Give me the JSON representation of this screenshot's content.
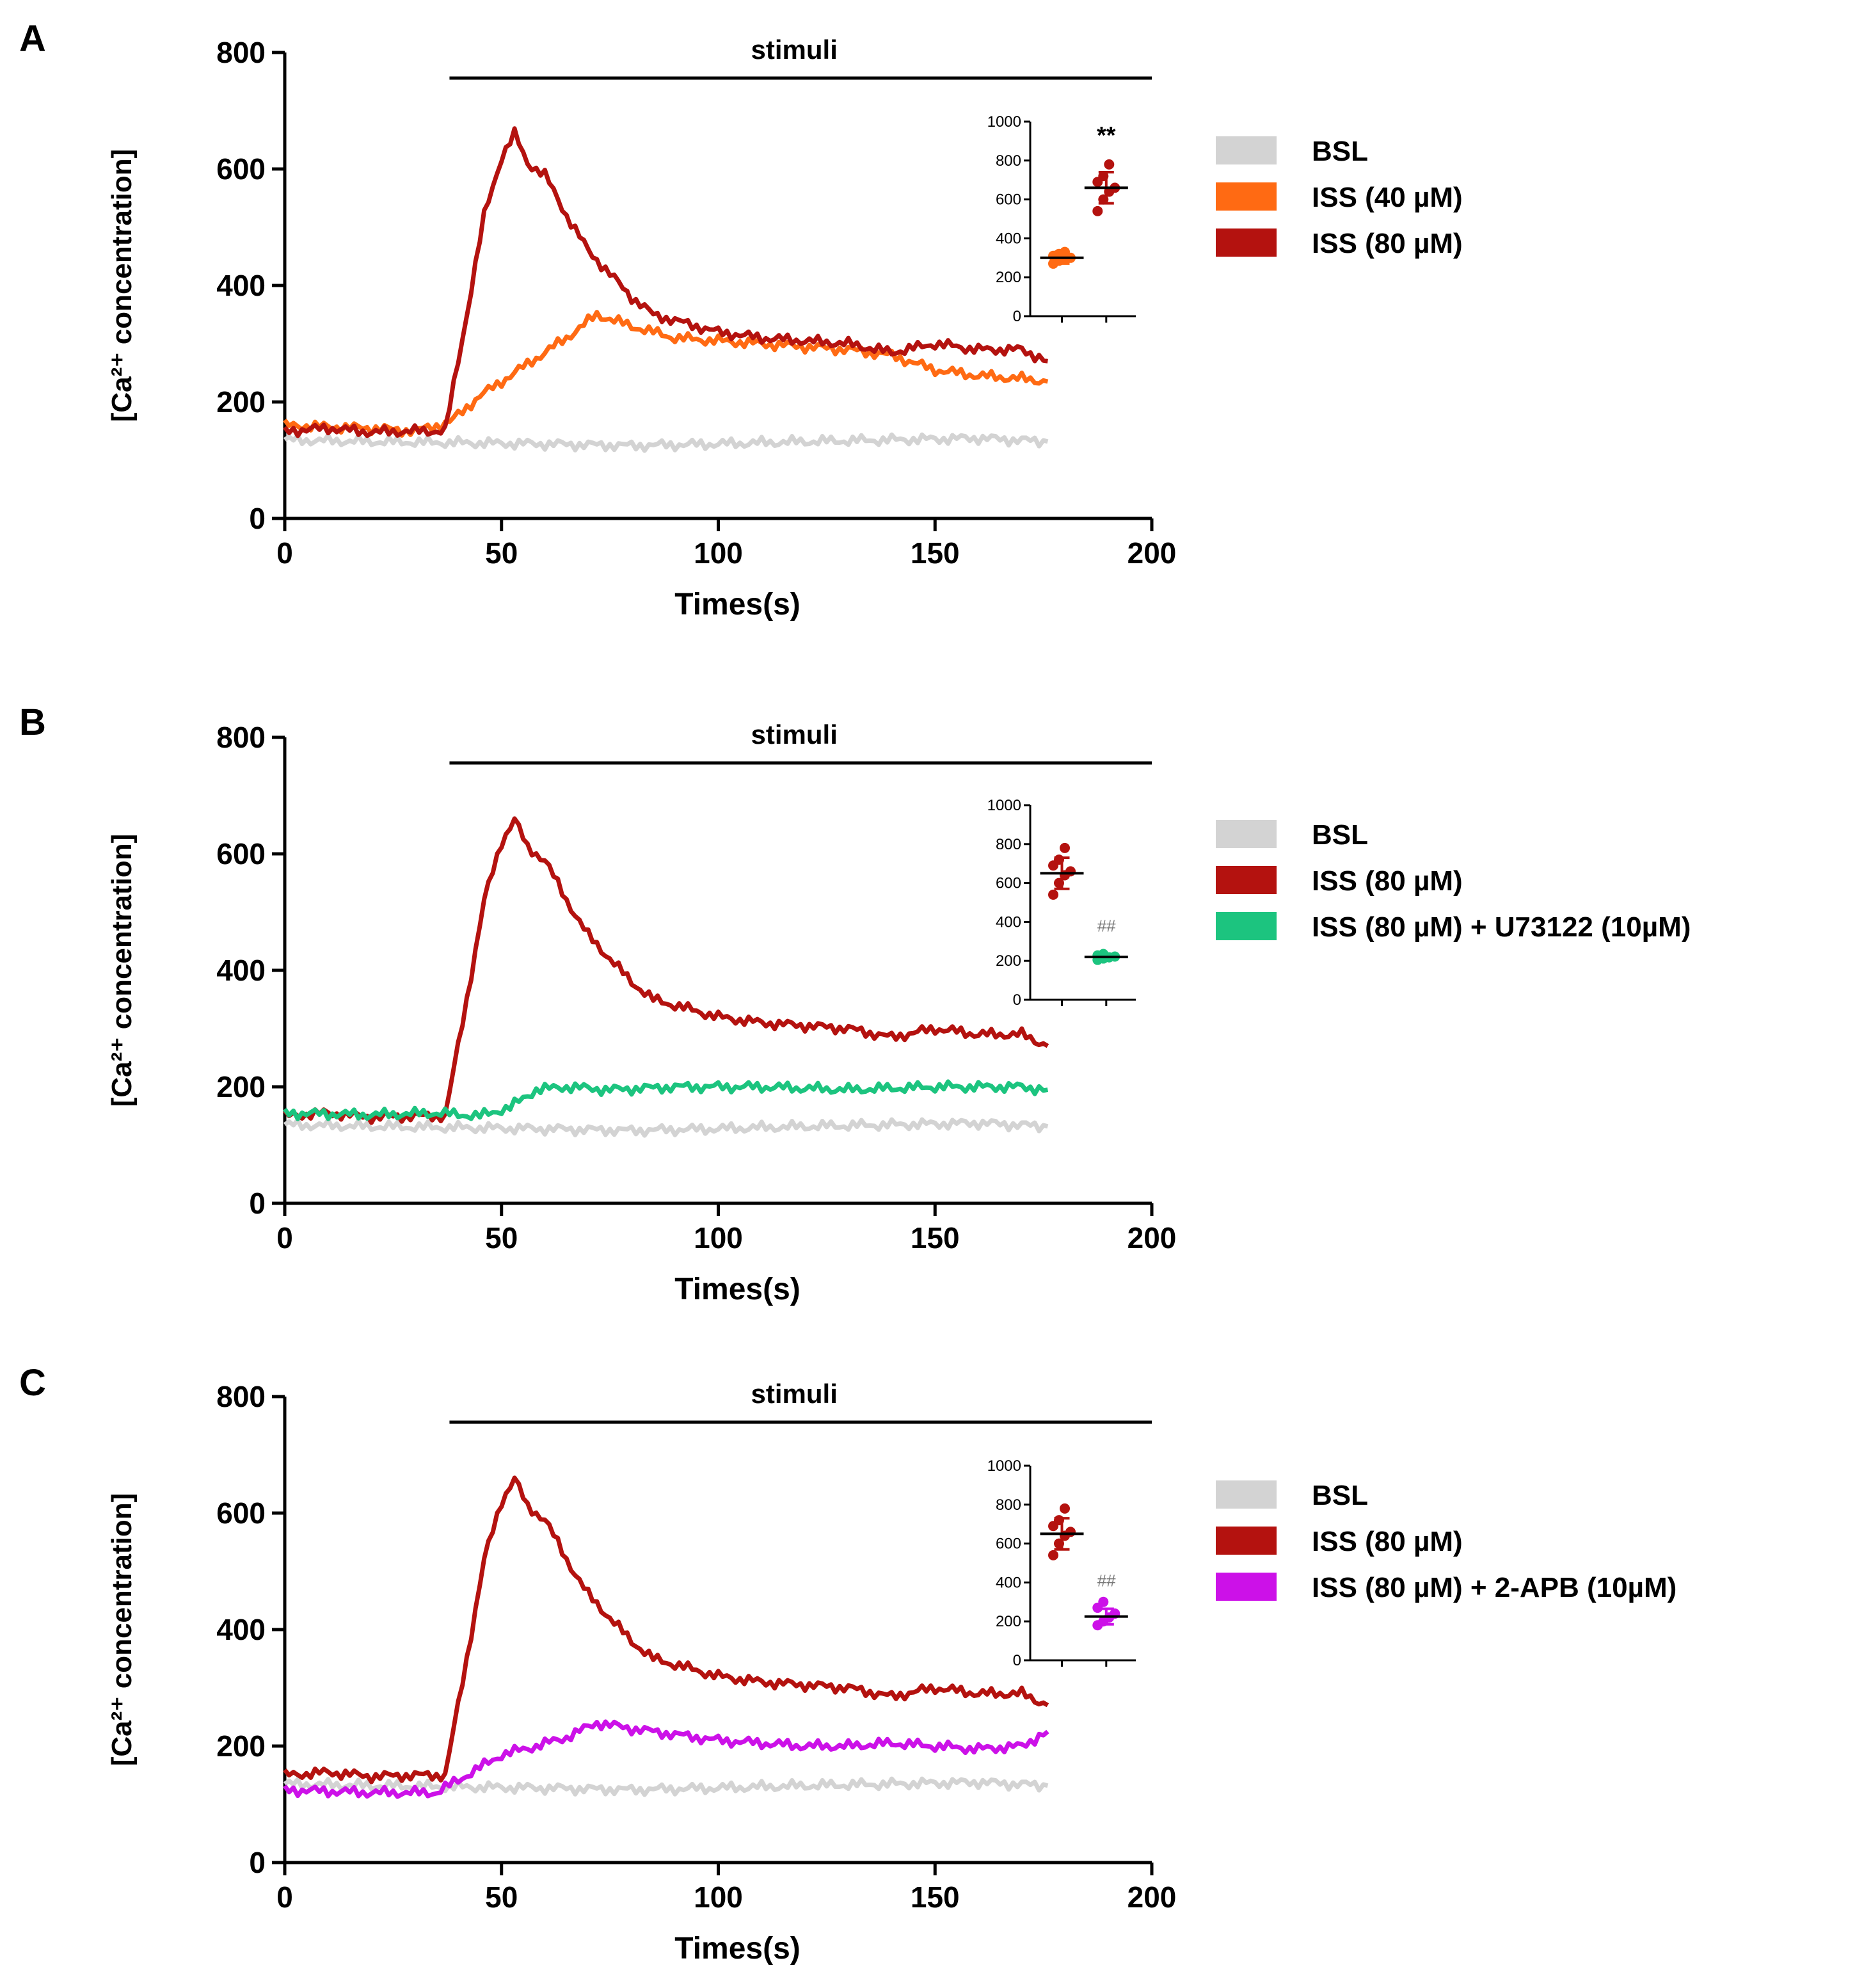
{
  "chart_data": [
    {
      "panel": "A",
      "type": "line",
      "title": "",
      "stimulus_label": "stimuli",
      "stimulus_range": [
        38,
        200
      ],
      "xlabel": "Times(s)",
      "ylabel": "[Ca²⁺ concentration]",
      "xlim": [
        0,
        200
      ],
      "ylim": [
        0,
        800
      ],
      "xticks": [
        "0",
        "50",
        "100",
        "150",
        "200"
      ],
      "yticks": [
        "0",
        "200",
        "400",
        "600",
        "800"
      ],
      "series": [
        {
          "name": "BSL",
          "color": "#d3d3d3",
          "x": [
            0,
            20,
            40,
            60,
            80,
            100,
            120,
            140,
            160,
            176
          ],
          "y": [
            135,
            132,
            130,
            128,
            125,
            128,
            132,
            135,
            138,
            132
          ]
        },
        {
          "name": "ISS (40 µM)",
          "color": "#ff6a13",
          "x": [
            0,
            20,
            30,
            38,
            45,
            55,
            65,
            72,
            80,
            90,
            100,
            110,
            120,
            130,
            140,
            150,
            160,
            170,
            176
          ],
          "y": [
            160,
            155,
            150,
            165,
            210,
            260,
            310,
            350,
            330,
            310,
            305,
            300,
            295,
            290,
            280,
            255,
            245,
            240,
            235
          ]
        },
        {
          "name": "ISS (80 µM)",
          "color": "#b4120f",
          "x": [
            0,
            10,
            20,
            30,
            37,
            42,
            46,
            50,
            53,
            56,
            60,
            65,
            70,
            75,
            80,
            85,
            90,
            100,
            110,
            120,
            130,
            140,
            150,
            160,
            170,
            176
          ],
          "y": [
            150,
            155,
            148,
            150,
            150,
            350,
            520,
            620,
            660,
            610,
            590,
            520,
            460,
            420,
            380,
            350,
            340,
            320,
            310,
            305,
            300,
            285,
            300,
            290,
            290,
            270
          ]
        }
      ],
      "inset": {
        "ylim": [
          0,
          1000
        ],
        "yticks": [
          "0",
          "200",
          "400",
          "600",
          "800",
          "1000"
        ],
        "annotation": "**",
        "groups": [
          {
            "name": "ISS (40 µM)",
            "color": "#ff6a13",
            "mean": 300,
            "sd": 30,
            "points": [
              270,
              285,
              295,
              300,
              310,
              320,
              330
            ]
          },
          {
            "name": "ISS (80 µM)",
            "color": "#b4120f",
            "mean": 660,
            "sd": 80,
            "points": [
              540,
              600,
              640,
              660,
              690,
              720,
              780
            ]
          }
        ]
      }
    },
    {
      "panel": "B",
      "type": "line",
      "title": "",
      "stimulus_label": "stimuli",
      "stimulus_range": [
        38,
        200
      ],
      "xlabel": "Times(s)",
      "ylabel": "[Ca²⁺ concentration]",
      "xlim": [
        0,
        200
      ],
      "ylim": [
        0,
        800
      ],
      "xticks": [
        "0",
        "50",
        "100",
        "150",
        "200"
      ],
      "yticks": [
        "0",
        "200",
        "400",
        "600",
        "800"
      ],
      "series": [
        {
          "name": "BSL",
          "color": "#d3d3d3",
          "x": [
            0,
            20,
            40,
            60,
            80,
            100,
            120,
            140,
            160,
            176
          ],
          "y": [
            135,
            132,
            130,
            128,
            125,
            128,
            132,
            135,
            138,
            132
          ]
        },
        {
          "name": "ISS (80 µM)",
          "color": "#b4120f",
          "x": [
            0,
            10,
            20,
            30,
            37,
            42,
            46,
            50,
            53,
            56,
            60,
            65,
            70,
            75,
            80,
            85,
            90,
            100,
            110,
            120,
            130,
            140,
            150,
            160,
            170,
            176
          ],
          "y": [
            150,
            155,
            148,
            150,
            150,
            350,
            520,
            620,
            660,
            610,
            590,
            520,
            460,
            420,
            380,
            350,
            340,
            320,
            310,
            305,
            300,
            285,
            300,
            290,
            290,
            270
          ]
        },
        {
          "name": "ISS (80 µM) + U73122 (10µM)",
          "color": "#1cc47f",
          "x": [
            0,
            20,
            35,
            45,
            52,
            58,
            65,
            75,
            90,
            110,
            130,
            150,
            170,
            176
          ],
          "y": [
            155,
            152,
            155,
            150,
            165,
            195,
            200,
            195,
            200,
            200,
            195,
            200,
            200,
            195
          ]
        }
      ],
      "inset": {
        "ylim": [
          0,
          1000
        ],
        "yticks": [
          "0",
          "200",
          "400",
          "600",
          "800",
          "1000"
        ],
        "annotation": "##",
        "groups": [
          {
            "name": "ISS (80 µM)",
            "color": "#b4120f",
            "mean": 650,
            "sd": 80,
            "points": [
              540,
              600,
              640,
              660,
              690,
              720,
              780
            ]
          },
          {
            "name": "ISS (80 µM) + U73122 (10µM)",
            "color": "#1cc47f",
            "mean": 220,
            "sd": 15,
            "points": [
              205,
              212,
              218,
              222,
              228,
              235
            ]
          }
        ]
      }
    },
    {
      "panel": "C",
      "type": "line",
      "title": "",
      "stimulus_label": "stimuli",
      "stimulus_range": [
        38,
        200
      ],
      "xlabel": "Times(s)",
      "ylabel": "[Ca²⁺ concentration]",
      "xlim": [
        0,
        200
      ],
      "ylim": [
        0,
        800
      ],
      "xticks": [
        "0",
        "50",
        "100",
        "150",
        "200"
      ],
      "yticks": [
        "0",
        "200",
        "400",
        "600",
        "800"
      ],
      "series": [
        {
          "name": "BSL",
          "color": "#d3d3d3",
          "x": [
            0,
            20,
            40,
            60,
            80,
            100,
            120,
            140,
            160,
            176
          ],
          "y": [
            135,
            132,
            130,
            128,
            125,
            128,
            132,
            135,
            138,
            132
          ]
        },
        {
          "name": "ISS (80 µM)",
          "color": "#b4120f",
          "x": [
            0,
            10,
            20,
            30,
            37,
            42,
            46,
            50,
            53,
            56,
            60,
            65,
            70,
            75,
            80,
            85,
            90,
            100,
            110,
            120,
            130,
            140,
            150,
            160,
            170,
            176
          ],
          "y": [
            150,
            155,
            148,
            150,
            150,
            350,
            520,
            620,
            660,
            610,
            590,
            520,
            460,
            420,
            380,
            350,
            340,
            320,
            310,
            305,
            300,
            285,
            300,
            290,
            290,
            270
          ]
        },
        {
          "name": "ISS (80 µM) + 2-APB (10µM)",
          "color": "#cc11e8",
          "x": [
            0,
            20,
            35,
            42,
            50,
            58,
            65,
            72,
            80,
            90,
            100,
            110,
            120,
            130,
            140,
            150,
            160,
            170,
            176
          ],
          "y": [
            125,
            120,
            120,
            150,
            185,
            200,
            215,
            240,
            230,
            220,
            210,
            205,
            200,
            200,
            205,
            200,
            195,
            200,
            225
          ]
        }
      ],
      "inset": {
        "ylim": [
          0,
          1000
        ],
        "yticks": [
          "0",
          "200",
          "400",
          "600",
          "800",
          "1000"
        ],
        "annotation": "##",
        "groups": [
          {
            "name": "ISS (80 µM)",
            "color": "#b4120f",
            "mean": 650,
            "sd": 80,
            "points": [
              540,
              600,
              640,
              660,
              690,
              720,
              780
            ]
          },
          {
            "name": "ISS (80 µM) + 2-APB (10µM)",
            "color": "#cc11e8",
            "mean": 225,
            "sd": 40,
            "points": [
              180,
              200,
              220,
              240,
              270,
              300
            ]
          }
        ]
      }
    }
  ]
}
